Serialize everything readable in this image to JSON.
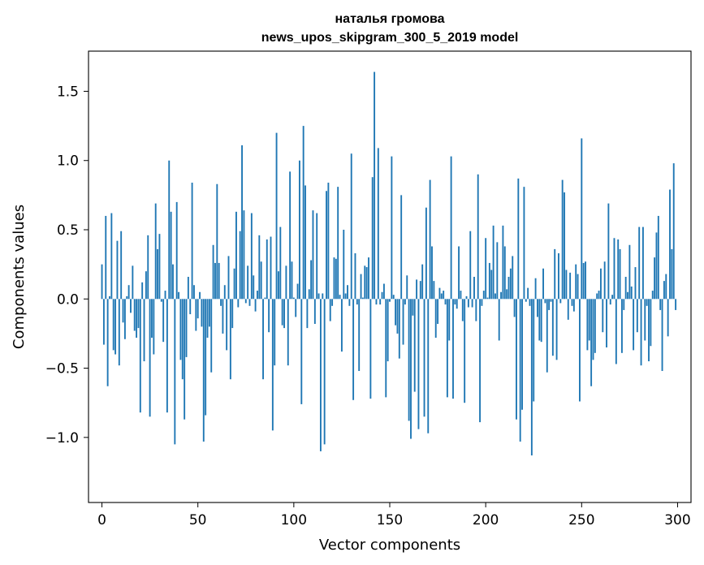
{
  "chart_data": {
    "type": "bar",
    "title": "наталья громова",
    "subtitle": "news_upos_skipgram_300_5_2019 model",
    "xlabel": "Vector components",
    "ylabel": "Components values",
    "xlim": [
      -7,
      307
    ],
    "ylim": [
      -1.47,
      1.79
    ],
    "xticks": [
      0,
      50,
      100,
      150,
      200,
      250,
      300
    ],
    "xtick_labels": [
      "0",
      "50",
      "100",
      "150",
      "200",
      "250",
      "300"
    ],
    "yticks": [
      -1.0,
      -0.5,
      0.0,
      0.5,
      1.0,
      1.5
    ],
    "ytick_labels": [
      "−1.0",
      "−0.5",
      "0.0",
      "0.5",
      "1.0",
      "1.5"
    ],
    "bar_color": "#1f77b4",
    "grid": false,
    "values": [
      0.25,
      -0.33,
      0.6,
      -0.63,
      0.02,
      0.62,
      -0.37,
      -0.4,
      0.42,
      -0.48,
      0.49,
      -0.17,
      -0.29,
      0.02,
      0.1,
      -0.1,
      0.24,
      -0.23,
      -0.28,
      -0.21,
      -0.82,
      0.12,
      -0.45,
      0.2,
      0.46,
      -0.85,
      -0.28,
      -0.4,
      0.69,
      0.36,
      0.47,
      -0.02,
      -0.31,
      0.06,
      -0.82,
      1.0,
      0.63,
      0.25,
      -1.05,
      0.7,
      0.05,
      -0.44,
      -0.58,
      -0.87,
      -0.42,
      0.16,
      -0.11,
      0.84,
      0.1,
      -0.23,
      -0.14,
      0.05,
      -0.2,
      -1.03,
      -0.84,
      -0.28,
      -0.2,
      -0.53,
      0.39,
      0.26,
      0.83,
      0.26,
      -0.05,
      -0.25,
      0.1,
      -0.37,
      0.31,
      -0.58,
      -0.21,
      0.22,
      0.63,
      -0.06,
      0.49,
      1.11,
      0.64,
      -0.03,
      0.24,
      -0.05,
      0.62,
      0.17,
      -0.09,
      0.06,
      0.46,
      0.27,
      -0.58,
      0.01,
      0.43,
      -0.24,
      0.45,
      -0.95,
      -0.48,
      1.2,
      0.2,
      0.52,
      -0.19,
      -0.21,
      0.24,
      -0.48,
      0.92,
      0.27,
      0.01,
      -0.13,
      0.11,
      1.0,
      -0.76,
      1.25,
      0.82,
      -0.21,
      0.07,
      0.28,
      0.64,
      -0.18,
      0.62,
      0.04,
      -1.1,
      0.04,
      -1.05,
      0.78,
      0.84,
      -0.16,
      -0.05,
      0.3,
      0.29,
      0.81,
      0.03,
      -0.38,
      0.5,
      0.04,
      0.1,
      -0.05,
      1.05,
      -0.73,
      0.33,
      -0.04,
      -0.52,
      0.18,
      0.01,
      0.24,
      0.23,
      0.3,
      -0.72,
      0.88,
      1.64,
      -0.04,
      1.09,
      -0.04,
      0.05,
      0.11,
      -0.71,
      -0.45,
      -0.02,
      1.03,
      0.03,
      -0.19,
      -0.25,
      -0.43,
      0.75,
      -0.33,
      -0.04,
      0.17,
      -0.88,
      -1.01,
      -0.12,
      -0.67,
      0.14,
      -0.94,
      0.13,
      0.25,
      -0.85,
      0.66,
      -0.97,
      0.86,
      0.38,
      0.13,
      -0.28,
      -0.18,
      0.08,
      0.04,
      0.06,
      -0.04,
      -0.71,
      -0.3,
      1.03,
      -0.72,
      -0.04,
      -0.07,
      0.38,
      0.06,
      -0.16,
      -0.75,
      0.02,
      -0.06,
      0.49,
      -0.06,
      0.16,
      -0.16,
      0.9,
      -0.89,
      -0.05,
      0.06,
      0.44,
      0.01,
      0.26,
      0.21,
      0.53,
      0.04,
      0.41,
      -0.3,
      0.05,
      0.53,
      0.38,
      0.07,
      0.16,
      0.22,
      0.31,
      -0.13,
      -0.87,
      0.87,
      -1.03,
      -0.8,
      0.81,
      -0.02,
      0.08,
      -0.05,
      -1.13,
      -0.74,
      0.15,
      -0.13,
      -0.3,
      -0.31,
      0.22,
      -0.03,
      -0.53,
      -0.08,
      -0.02,
      -0.41,
      0.36,
      -0.44,
      0.33,
      -0.03,
      0.86,
      0.77,
      0.21,
      -0.15,
      0.19,
      -0.05,
      -0.09,
      0.25,
      0.18,
      -0.74,
      1.16,
      0.26,
      0.27,
      -0.37,
      -0.3,
      -0.63,
      -0.44,
      -0.39,
      0.04,
      0.06,
      0.22,
      -0.24,
      0.27,
      -0.35,
      0.69,
      -0.04,
      0.03,
      0.44,
      -0.47,
      0.43,
      0.36,
      -0.39,
      -0.08,
      0.16,
      0.05,
      0.39,
      0.09,
      -0.37,
      0.23,
      -0.24,
      0.52,
      -0.48,
      0.52,
      -0.3,
      -0.05,
      -0.45,
      -0.34,
      0.06,
      0.3,
      0.48,
      0.6,
      -0.08,
      -0.52,
      0.13,
      0.18,
      -0.27,
      0.79,
      0.36,
      0.98,
      -0.08
    ]
  }
}
